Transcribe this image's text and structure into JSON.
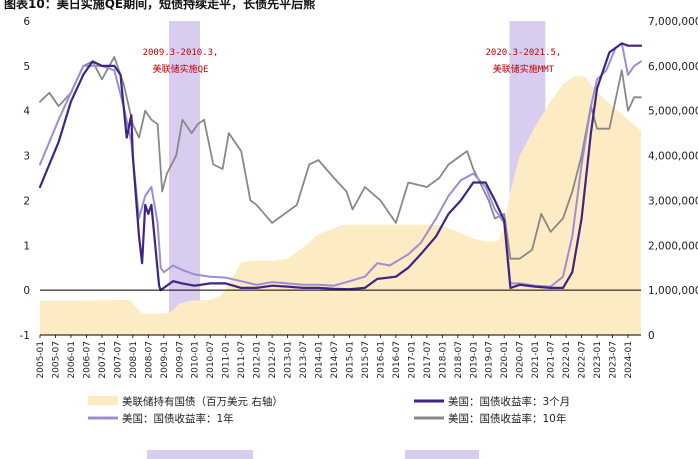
{
  "chart_data": {
    "type": "line",
    "title": "图表10：美日实施QE期间，短债持续走平，长债先平后熊",
    "y_left": {
      "min": -1,
      "max": 6,
      "ticks": [
        -1,
        0,
        1,
        2,
        3,
        4,
        5,
        6
      ]
    },
    "y_right": {
      "min": 0,
      "max": 7000000,
      "ticks": [
        0,
        1000000,
        2000000,
        3000000,
        4000000,
        5000000,
        6000000,
        7000000
      ],
      "tick_labels": [
        "0",
        "1,000,000",
        "2,000,000",
        "3,000,000",
        "4,000,000",
        "5,000,000",
        "6,000,000",
        "7,000,000"
      ]
    },
    "x_range": [
      2005.0,
      2024.42
    ],
    "x_ticks": [
      "2005-01",
      "2005-07",
      "2006-01",
      "2006-07",
      "2007-01",
      "2007-07",
      "2008-01",
      "2008-07",
      "2009-01",
      "2009-07",
      "2010-01",
      "2010-07",
      "2011-01",
      "2011-07",
      "2012-01",
      "2012-07",
      "2013-01",
      "2013-07",
      "2014-01",
      "2014-07",
      "2015-01",
      "2015-07",
      "2016-01",
      "2016-07",
      "2017-01",
      "2017-07",
      "2018-01",
      "2018-07",
      "2019-01",
      "2019-07",
      "2020-01",
      "2020-07",
      "2021-01",
      "2021-07",
      "2022-01",
      "2022-07",
      "2023-01",
      "2023-07",
      "2024-01"
    ],
    "shaded_periods": [
      {
        "start": 2009.17,
        "end": 2010.17,
        "label_line1": "2009.3-2010.3,",
        "label_line2": "美联储实施QE",
        "color": "#d9cdef"
      },
      {
        "start": 2020.17,
        "end": 2021.33,
        "label_line1": "2020.3-2021.5,",
        "label_line2": "美联储实施MMT",
        "color": "#d9cdef"
      }
    ],
    "series": [
      {
        "name": "美联储持有国债（百万美元 右轴）",
        "axis": "right",
        "style": "area",
        "color": "#fdebc4",
        "points": [
          [
            2005.0,
            760000
          ],
          [
            2007.9,
            780000
          ],
          [
            2008.0,
            700000
          ],
          [
            2008.3,
            480000
          ],
          [
            2008.9,
            475000
          ],
          [
            2009.2,
            500000
          ],
          [
            2009.5,
            700000
          ],
          [
            2009.9,
            770000
          ],
          [
            2010.5,
            780000
          ],
          [
            2010.9,
            900000
          ],
          [
            2011.5,
            1620000
          ],
          [
            2011.8,
            1650000
          ],
          [
            2012.5,
            1650000
          ],
          [
            2013.0,
            1700000
          ],
          [
            2013.5,
            1950000
          ],
          [
            2014.0,
            2250000
          ],
          [
            2014.8,
            2460000
          ],
          [
            2015.5,
            2460000
          ],
          [
            2016.0,
            2460000
          ],
          [
            2017.5,
            2460000
          ],
          [
            2017.9,
            2450000
          ],
          [
            2018.5,
            2300000
          ],
          [
            2019.0,
            2150000
          ],
          [
            2019.5,
            2080000
          ],
          [
            2019.8,
            2100000
          ],
          [
            2020.0,
            2400000
          ],
          [
            2020.2,
            3200000
          ],
          [
            2020.5,
            4000000
          ],
          [
            2021.0,
            4650000
          ],
          [
            2021.5,
            5200000
          ],
          [
            2021.9,
            5600000
          ],
          [
            2022.3,
            5780000
          ],
          [
            2022.6,
            5760000
          ],
          [
            2023.0,
            5400000
          ],
          [
            2023.5,
            5100000
          ],
          [
            2024.0,
            4800000
          ],
          [
            2024.42,
            4550000
          ]
        ]
      },
      {
        "name": "美国：国债收益率：3个月",
        "axis": "left",
        "style": "line",
        "color": "#3f2484",
        "width": 2.2,
        "points": [
          [
            2005.0,
            2.3
          ],
          [
            2005.3,
            2.8
          ],
          [
            2005.6,
            3.3
          ],
          [
            2006.0,
            4.2
          ],
          [
            2006.4,
            4.8
          ],
          [
            2006.7,
            5.1
          ],
          [
            2007.0,
            5.0
          ],
          [
            2007.4,
            5.0
          ],
          [
            2007.6,
            4.8
          ],
          [
            2007.8,
            3.4
          ],
          [
            2007.95,
            3.9
          ],
          [
            2008.0,
            3.0
          ],
          [
            2008.2,
            1.2
          ],
          [
            2008.3,
            0.6
          ],
          [
            2008.4,
            1.9
          ],
          [
            2008.5,
            1.7
          ],
          [
            2008.6,
            1.9
          ],
          [
            2008.75,
            0.8
          ],
          [
            2008.85,
            0.1
          ],
          [
            2008.9,
            0.0
          ],
          [
            2009.0,
            0.05
          ],
          [
            2009.3,
            0.2
          ],
          [
            2009.6,
            0.15
          ],
          [
            2010.0,
            0.1
          ],
          [
            2010.5,
            0.15
          ],
          [
            2011.0,
            0.15
          ],
          [
            2011.5,
            0.05
          ],
          [
            2012.0,
            0.05
          ],
          [
            2012.5,
            0.1
          ],
          [
            2013.0,
            0.08
          ],
          [
            2013.5,
            0.05
          ],
          [
            2014.0,
            0.05
          ],
          [
            2014.5,
            0.03
          ],
          [
            2015.0,
            0.02
          ],
          [
            2015.5,
            0.05
          ],
          [
            2015.9,
            0.25
          ],
          [
            2016.5,
            0.3
          ],
          [
            2016.9,
            0.5
          ],
          [
            2017.3,
            0.8
          ],
          [
            2017.8,
            1.2
          ],
          [
            2018.2,
            1.7
          ],
          [
            2018.6,
            2.0
          ],
          [
            2019.0,
            2.4
          ],
          [
            2019.4,
            2.4
          ],
          [
            2019.7,
            2.0
          ],
          [
            2020.0,
            1.55
          ],
          [
            2020.2,
            0.05
          ],
          [
            2020.5,
            0.12
          ],
          [
            2021.0,
            0.08
          ],
          [
            2021.5,
            0.05
          ],
          [
            2021.9,
            0.05
          ],
          [
            2022.2,
            0.4
          ],
          [
            2022.5,
            1.6
          ],
          [
            2022.8,
            3.5
          ],
          [
            2023.0,
            4.5
          ],
          [
            2023.4,
            5.3
          ],
          [
            2023.8,
            5.5
          ],
          [
            2024.0,
            5.45
          ],
          [
            2024.42,
            5.45
          ]
        ]
      },
      {
        "name": "美国：国债收益率：1年",
        "axis": "left",
        "style": "line",
        "color": "#9b8fd3",
        "width": 2.0,
        "points": [
          [
            2005.0,
            2.8
          ],
          [
            2005.3,
            3.3
          ],
          [
            2005.6,
            3.8
          ],
          [
            2006.0,
            4.4
          ],
          [
            2006.4,
            5.0
          ],
          [
            2006.7,
            5.0
          ],
          [
            2007.0,
            5.0
          ],
          [
            2007.4,
            4.9
          ],
          [
            2007.7,
            4.1
          ],
          [
            2007.95,
            3.3
          ],
          [
            2008.2,
            1.6
          ],
          [
            2008.4,
            2.1
          ],
          [
            2008.6,
            2.3
          ],
          [
            2008.8,
            1.5
          ],
          [
            2008.9,
            0.5
          ],
          [
            2009.0,
            0.4
          ],
          [
            2009.3,
            0.55
          ],
          [
            2009.6,
            0.45
          ],
          [
            2010.0,
            0.35
          ],
          [
            2010.5,
            0.3
          ],
          [
            2011.0,
            0.28
          ],
          [
            2011.5,
            0.2
          ],
          [
            2012.0,
            0.12
          ],
          [
            2012.5,
            0.18
          ],
          [
            2013.0,
            0.15
          ],
          [
            2013.5,
            0.12
          ],
          [
            2014.0,
            0.12
          ],
          [
            2014.5,
            0.1
          ],
          [
            2015.0,
            0.2
          ],
          [
            2015.5,
            0.3
          ],
          [
            2015.9,
            0.6
          ],
          [
            2016.3,
            0.55
          ],
          [
            2016.9,
            0.8
          ],
          [
            2017.3,
            1.05
          ],
          [
            2017.8,
            1.6
          ],
          [
            2018.2,
            2.1
          ],
          [
            2018.6,
            2.45
          ],
          [
            2019.0,
            2.6
          ],
          [
            2019.4,
            2.3
          ],
          [
            2019.7,
            1.8
          ],
          [
            2020.0,
            1.5
          ],
          [
            2020.2,
            0.15
          ],
          [
            2020.5,
            0.15
          ],
          [
            2021.0,
            0.1
          ],
          [
            2021.5,
            0.08
          ],
          [
            2021.9,
            0.3
          ],
          [
            2022.2,
            1.2
          ],
          [
            2022.5,
            2.8
          ],
          [
            2022.8,
            4.1
          ],
          [
            2023.0,
            4.7
          ],
          [
            2023.3,
            4.9
          ],
          [
            2023.6,
            5.4
          ],
          [
            2023.8,
            5.5
          ],
          [
            2024.0,
            4.8
          ],
          [
            2024.2,
            5.0
          ],
          [
            2024.42,
            5.1
          ]
        ]
      },
      {
        "name": "美国：国债收益率：10年",
        "axis": "left",
        "style": "line",
        "color": "#888888",
        "width": 1.8,
        "points": [
          [
            2005.0,
            4.2
          ],
          [
            2005.3,
            4.4
          ],
          [
            2005.6,
            4.1
          ],
          [
            2006.0,
            4.4
          ],
          [
            2006.4,
            5.0
          ],
          [
            2006.7,
            5.1
          ],
          [
            2007.0,
            4.7
          ],
          [
            2007.4,
            5.2
          ],
          [
            2007.7,
            4.6
          ],
          [
            2008.0,
            3.7
          ],
          [
            2008.2,
            3.4
          ],
          [
            2008.4,
            4.0
          ],
          [
            2008.6,
            3.8
          ],
          [
            2008.8,
            3.7
          ],
          [
            2008.95,
            2.2
          ],
          [
            2009.1,
            2.6
          ],
          [
            2009.4,
            3.0
          ],
          [
            2009.6,
            3.8
          ],
          [
            2009.9,
            3.5
          ],
          [
            2010.1,
            3.7
          ],
          [
            2010.3,
            3.8
          ],
          [
            2010.6,
            2.8
          ],
          [
            2010.9,
            2.7
          ],
          [
            2011.1,
            3.5
          ],
          [
            2011.5,
            3.1
          ],
          [
            2011.8,
            2.0
          ],
          [
            2012.0,
            1.9
          ],
          [
            2012.5,
            1.5
          ],
          [
            2012.9,
            1.7
          ],
          [
            2013.3,
            1.9
          ],
          [
            2013.7,
            2.8
          ],
          [
            2014.0,
            2.9
          ],
          [
            2014.5,
            2.5
          ],
          [
            2014.9,
            2.2
          ],
          [
            2015.1,
            1.8
          ],
          [
            2015.5,
            2.3
          ],
          [
            2016.0,
            2.0
          ],
          [
            2016.5,
            1.5
          ],
          [
            2016.9,
            2.4
          ],
          [
            2017.5,
            2.3
          ],
          [
            2017.9,
            2.5
          ],
          [
            2018.2,
            2.8
          ],
          [
            2018.8,
            3.1
          ],
          [
            2019.0,
            2.7
          ],
          [
            2019.5,
            2.0
          ],
          [
            2019.7,
            1.6
          ],
          [
            2020.0,
            1.7
          ],
          [
            2020.2,
            0.7
          ],
          [
            2020.5,
            0.7
          ],
          [
            2020.9,
            0.9
          ],
          [
            2021.2,
            1.7
          ],
          [
            2021.5,
            1.3
          ],
          [
            2021.9,
            1.6
          ],
          [
            2022.2,
            2.2
          ],
          [
            2022.5,
            3.0
          ],
          [
            2022.8,
            4.1
          ],
          [
            2023.0,
            3.6
          ],
          [
            2023.4,
            3.6
          ],
          [
            2023.8,
            4.9
          ],
          [
            2024.0,
            4.0
          ],
          [
            2024.2,
            4.3
          ],
          [
            2024.42,
            4.3
          ]
        ]
      }
    ],
    "legend": [
      {
        "label": "美联储持有国债（百万美元 右轴）",
        "type": "area",
        "color": "#fdebc4"
      },
      {
        "label": "美国：国债收益率：3个月",
        "type": "line",
        "color": "#3f2484"
      },
      {
        "label": "美国：国债收益率：1年",
        "type": "line",
        "color": "#9b8fd3"
      },
      {
        "label": "美国：国债收益率：10年",
        "type": "line",
        "color": "#888888"
      }
    ]
  }
}
